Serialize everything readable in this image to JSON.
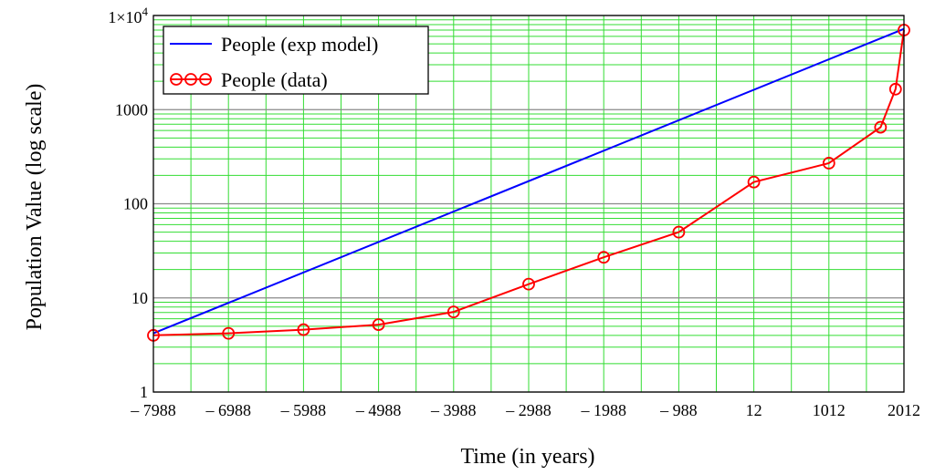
{
  "chart_data": {
    "type": "line",
    "xlabel": "Time (in years)",
    "ylabel": "Population Value (log scale)",
    "yscale": "log",
    "xlim": [
      -7988,
      2012
    ],
    "ylim": [
      1,
      10000
    ],
    "grid": true,
    "legend_position": "top-left",
    "x_ticks": [
      -7988,
      -6988,
      -5988,
      -4988,
      -3988,
      -2988,
      -1988,
      -988,
      12,
      1012,
      2012
    ],
    "x_tick_labels": [
      "– 7988",
      "– 6988",
      "– 5988",
      "– 4988",
      "– 3988",
      "– 2988",
      "– 1988",
      "– 988",
      "12",
      "1012",
      "2012"
    ],
    "y_ticks": [
      1,
      10,
      100,
      1000,
      10000
    ],
    "y_tick_labels": [
      "1",
      "10",
      "100",
      "1000",
      "1×10^4"
    ],
    "series": [
      {
        "name": "People (exp model)",
        "color": "#0000ff",
        "marker": "none",
        "x": [
          -7988,
          2012
        ],
        "y": [
          4.2,
          7200
        ]
      },
      {
        "name": "People (data)",
        "color": "#ff0000",
        "marker": "circle",
        "x": [
          -7988,
          -6988,
          -5988,
          -4988,
          -3988,
          -2988,
          -1988,
          -988,
          12,
          1012,
          1700,
          1900,
          2012
        ],
        "y": [
          4,
          4.2,
          4.6,
          5.2,
          7.1,
          14,
          27,
          50,
          170,
          270,
          650,
          1650,
          7000
        ]
      }
    ]
  }
}
